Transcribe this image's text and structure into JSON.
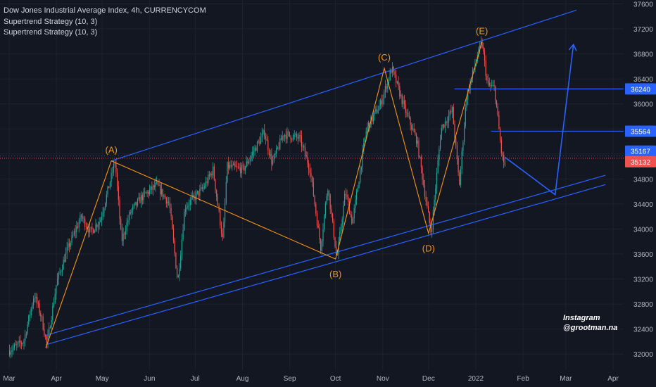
{
  "header": {
    "title": "Dow Jones Industrial Average Index, 4h, CURRENCYCOM",
    "indicators": [
      "Supertrend Strategy (10, 3)",
      "Supertrend Strategy (10, 3)"
    ]
  },
  "watermark": {
    "line1": "Instagram",
    "line2": "@grootman.na"
  },
  "colors": {
    "background": "#131722",
    "grid": "#1e222d",
    "up": "#26a69a",
    "down": "#ef5350",
    "channel": "#2962ff",
    "wave": "#f7931a",
    "axis_text": "#b2b5be"
  },
  "chart_data": {
    "type": "candlestick",
    "x_ticks": [
      "Mar",
      "Apr",
      "May",
      "Jun",
      "Jul",
      "Aug",
      "Sep",
      "Oct",
      "Nov",
      "Dec",
      "2022",
      "Feb",
      "Mar",
      "Apr"
    ],
    "y_ticks": [
      32000,
      32400,
      32800,
      33200,
      33600,
      34000,
      34400,
      34800,
      35200,
      35600,
      36000,
      36400,
      36800,
      37200,
      37600
    ],
    "ylim": [
      31900,
      37700
    ],
    "price_labels": [
      {
        "label": "36240",
        "value": 36240
      },
      {
        "label": "35564",
        "value": 35564
      },
      {
        "label": "35167",
        "value": 35167
      },
      {
        "label": "35132",
        "value": 35132
      }
    ],
    "wave_points": [
      {
        "label": "(A)",
        "date": "2021-05-07",
        "value": 35090
      },
      {
        "label": "(B)",
        "date": "2021-10-01",
        "value": 33520
      },
      {
        "label": "(C)",
        "date": "2021-11-02",
        "value": 36570
      },
      {
        "label": "(D)",
        "date": "2021-12-01",
        "value": 33930
      },
      {
        "label": "(E)",
        "date": "2022-01-05",
        "value": 36990
      }
    ],
    "wave_path": [
      {
        "date": "2021-03-25",
        "value": 32100
      },
      {
        "date": "2021-05-07",
        "value": 35090
      },
      {
        "date": "2021-10-01",
        "value": 33520
      },
      {
        "date": "2021-11-02",
        "value": 36570
      },
      {
        "date": "2021-12-01",
        "value": 33930
      },
      {
        "date": "2022-01-05",
        "value": 36990
      }
    ],
    "channel_upper": [
      {
        "date": "2021-05-07",
        "value": 35090
      },
      {
        "date": "2022-03-08",
        "value": 37500
      }
    ],
    "channel_lower": [
      {
        "date": "2021-03-25",
        "value": 32300
      },
      {
        "date": "2022-03-27",
        "value": 34860
      }
    ],
    "channel_lower2": [
      {
        "date": "2021-03-25",
        "value": 32150
      },
      {
        "date": "2022-03-27",
        "value": 34710
      }
    ],
    "resistance_1": {
      "from": "2021-12-18",
      "to": "2022-04-30",
      "value": 36240
    },
    "resistance_2": {
      "from": "2022-01-11",
      "to": "2022-04-30",
      "value": 35564
    },
    "forecast_path": [
      {
        "date": "2022-01-20",
        "value": 35150
      },
      {
        "date": "2022-02-22",
        "value": 34550
      },
      {
        "date": "2022-03-06",
        "value": 36950
      }
    ],
    "candles_ohlc_4h_approx": [
      [
        "2021-03-01",
        32100,
        32500
      ],
      [
        "2021-04-01",
        32800,
        33300
      ],
      [
        "2021-05-07",
        34200,
        35090
      ],
      [
        "2021-05-20",
        33500,
        34000
      ],
      [
        "2021-06-20",
        33700,
        34300
      ],
      [
        "2021-07-20",
        33800,
        34600
      ],
      [
        "2021-08-16",
        35000,
        35600
      ],
      [
        "2021-09-20",
        33700,
        34300
      ],
      [
        "2021-10-15",
        34800,
        35300
      ],
      [
        "2021-11-02",
        36000,
        36570
      ],
      [
        "2021-12-01",
        34000,
        34600
      ],
      [
        "2022-01-05",
        36400,
        36990
      ],
      [
        "2022-01-21",
        34300,
        34800
      ]
    ]
  }
}
